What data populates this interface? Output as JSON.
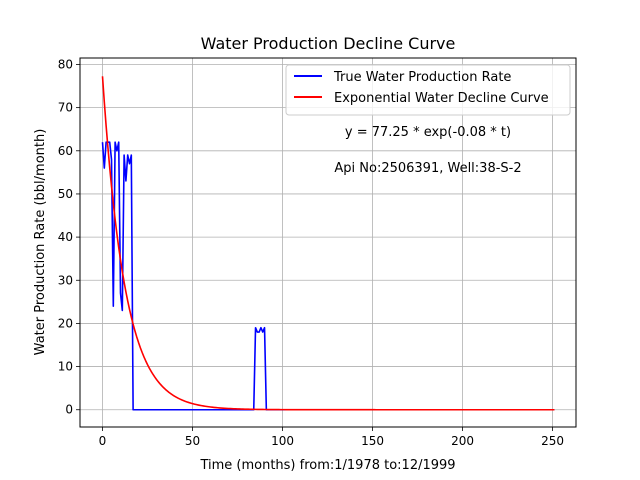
{
  "chart_data": {
    "type": "line",
    "title": "Water Production Decline Curve",
    "xlabel": "Time (months) from:1/1978 to:12/1999",
    "ylabel": "Water Production Rate (bbl/month)",
    "xlim": [
      -12.5,
      263
    ],
    "ylim": [
      -4,
      81.5
    ],
    "xticks": [
      0,
      50,
      100,
      150,
      200,
      250
    ],
    "yticks": [
      0,
      10,
      20,
      30,
      40,
      50,
      60,
      70,
      80
    ],
    "grid": true,
    "legend_position": "top-right",
    "annotations": [
      "y = 77.25 * exp(-0.08 * t)",
      "Api No:2506391, Well:38-S-2"
    ],
    "series": [
      {
        "name": "True Water Production Rate",
        "color": "#0000ff",
        "points": [
          [
            0,
            62
          ],
          [
            1,
            56
          ],
          [
            2,
            62
          ],
          [
            3,
            62
          ],
          [
            4,
            62
          ],
          [
            5,
            58
          ],
          [
            6,
            24
          ],
          [
            7,
            62
          ],
          [
            8,
            60
          ],
          [
            9,
            62
          ],
          [
            10,
            27
          ],
          [
            11,
            23
          ],
          [
            12,
            59
          ],
          [
            13,
            53
          ],
          [
            14,
            59
          ],
          [
            15,
            57
          ],
          [
            16,
            59
          ],
          [
            17,
            0
          ],
          [
            84,
            0
          ],
          [
            85,
            19
          ],
          [
            86,
            18
          ],
          [
            87,
            18
          ],
          [
            88,
            19
          ],
          [
            89,
            18
          ],
          [
            90,
            19
          ],
          [
            91,
            0
          ],
          [
            251,
            0
          ]
        ]
      },
      {
        "name": "Exponential Water Decline Curve",
        "color": "#ff0000",
        "model": {
          "a": 77.25,
          "b": 0.08,
          "t_start": 0,
          "t_end": 251
        }
      }
    ]
  }
}
